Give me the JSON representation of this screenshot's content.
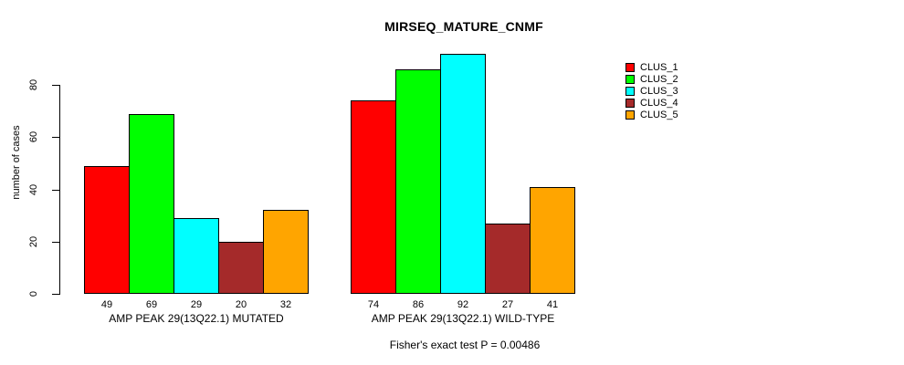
{
  "chart_data": {
    "type": "bar",
    "title": "MIRSEQ_MATURE_CNMF",
    "ylabel": "number of cases",
    "xlabel": "",
    "annotation": "Fisher's exact test P = 0.00486",
    "categories": [
      "AMP PEAK 29(13Q22.1) MUTATED",
      "AMP PEAK 29(13Q22.1) WILD-TYPE"
    ],
    "series": [
      {
        "name": "CLUS_1",
        "color": "#ff0000",
        "values": [
          49,
          74
        ]
      },
      {
        "name": "CLUS_2",
        "color": "#00ff00",
        "values": [
          69,
          86
        ]
      },
      {
        "name": "CLUS_3",
        "color": "#00ffff",
        "values": [
          29,
          92
        ]
      },
      {
        "name": "CLUS_4",
        "color": "#a52a2a",
        "values": [
          20,
          27
        ]
      },
      {
        "name": "CLUS_5",
        "color": "#ffa500",
        "values": [
          32,
          41
        ]
      }
    ],
    "yticks": [
      0,
      20,
      40,
      60,
      80
    ],
    "ylim": [
      0,
      92
    ],
    "bar_value_labels": true,
    "grid": false,
    "legend_position": "right",
    "axis_color": "#000000",
    "text_color": "#000000",
    "background": "#ffffff"
  }
}
